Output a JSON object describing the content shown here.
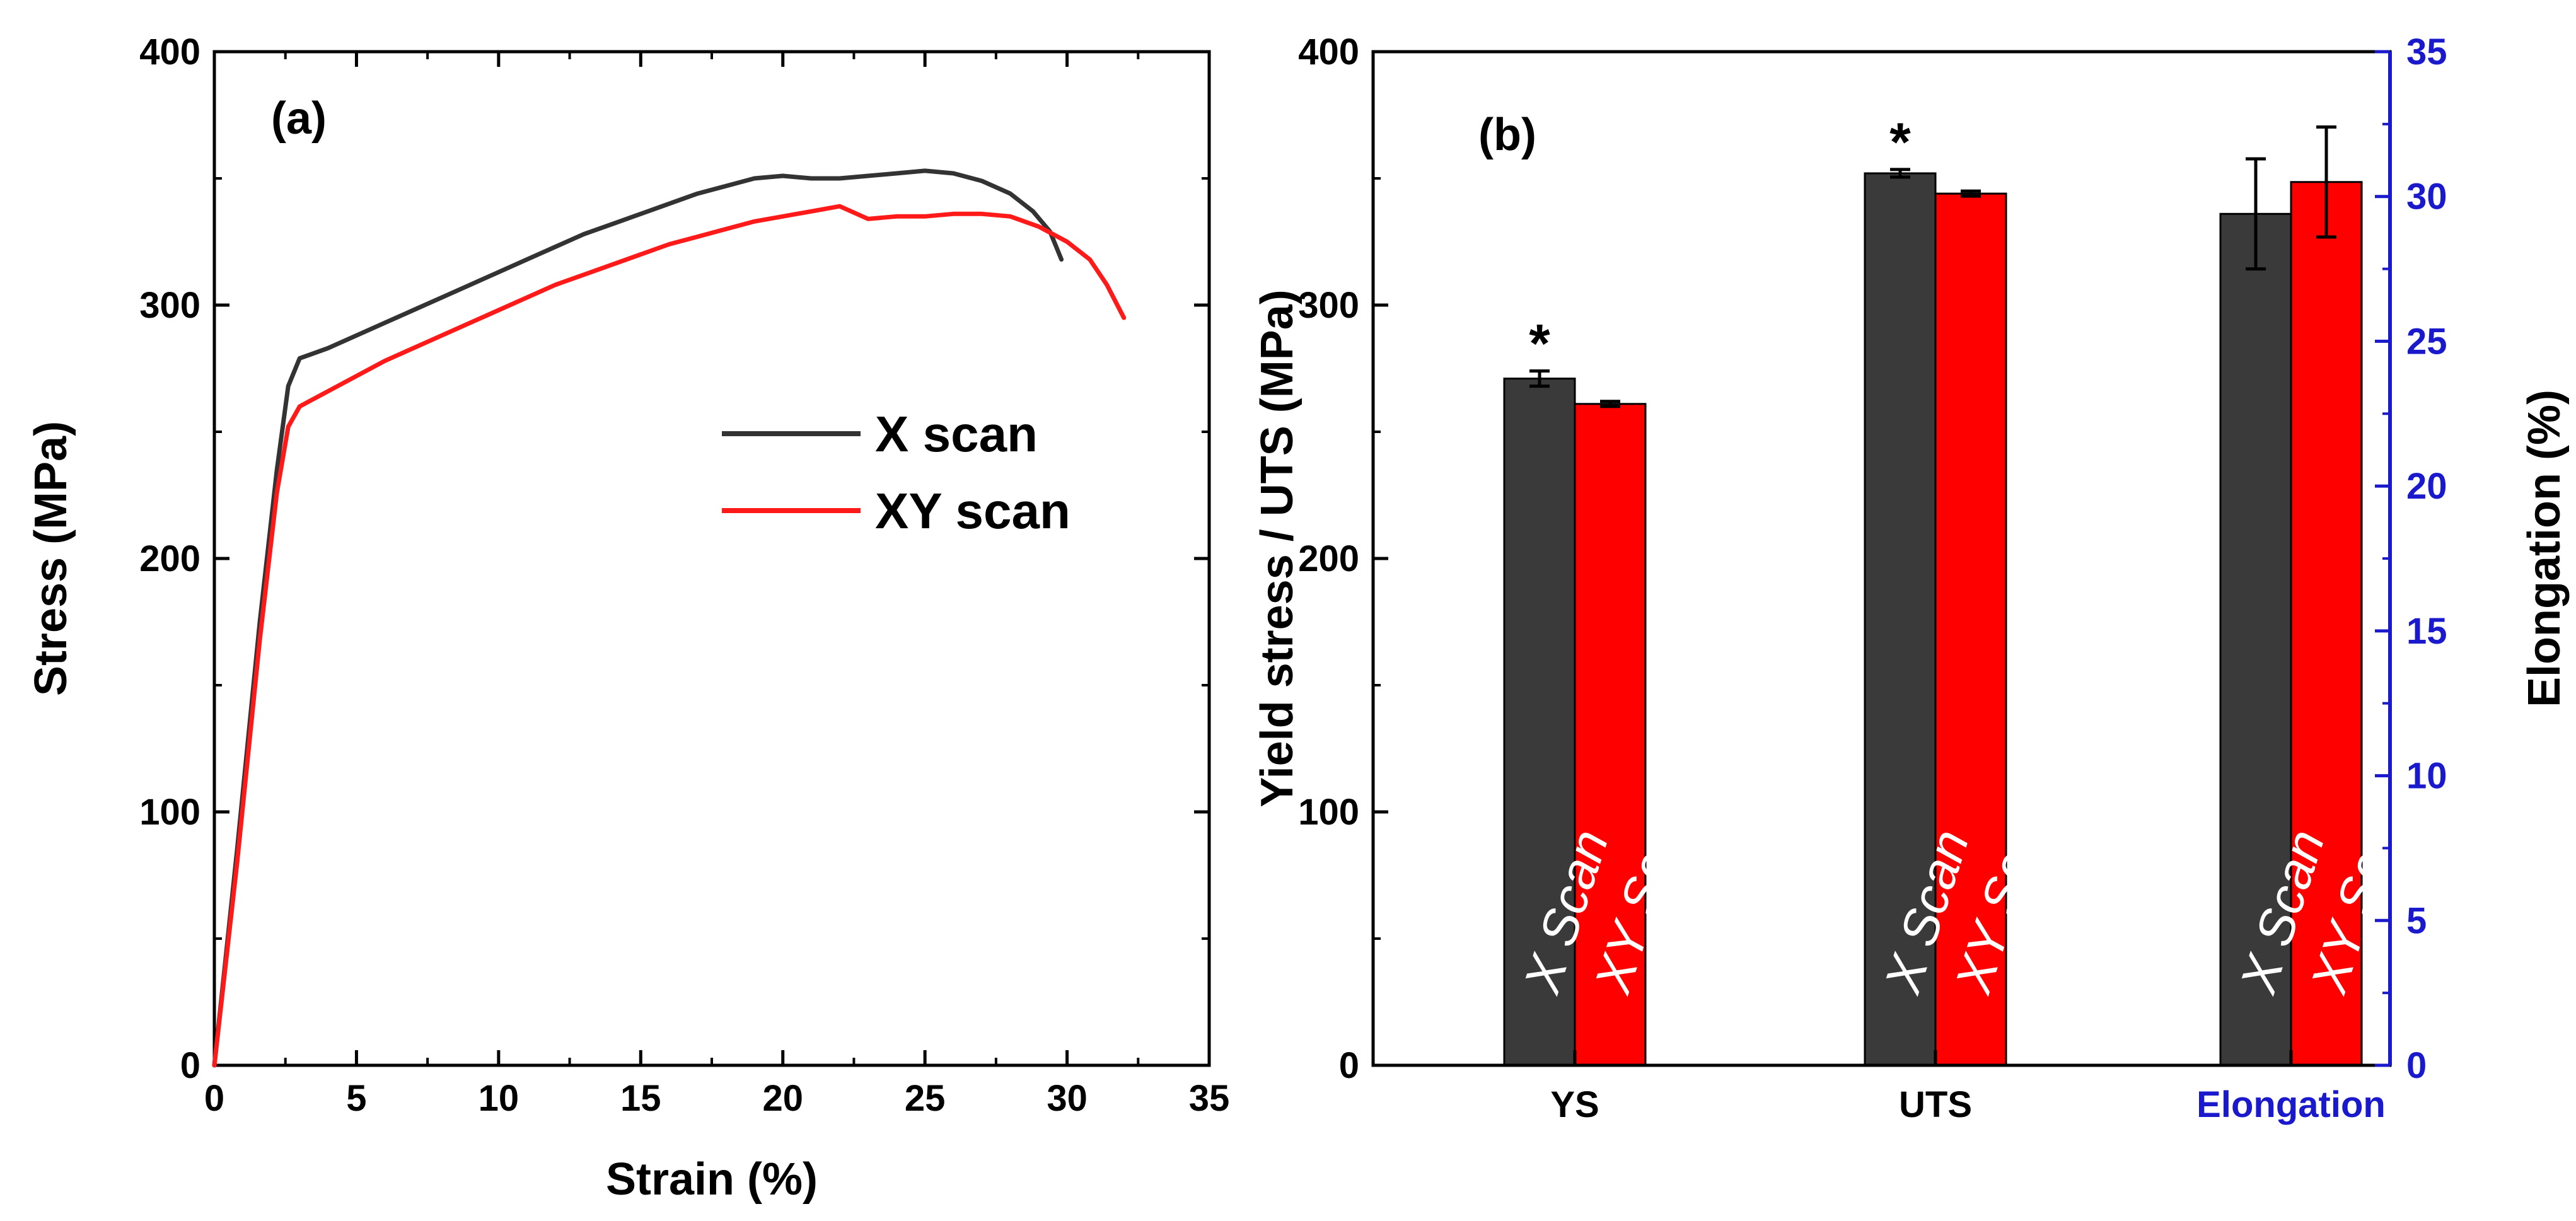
{
  "chart_data": [
    {
      "type": "line",
      "panel_label": "(a)",
      "xlabel": "Strain (%)",
      "ylabel": "Stress (MPa)",
      "xlim": [
        0,
        35
      ],
      "ylim": [
        0,
        400
      ],
      "xticks": [
        "0",
        "5",
        "10",
        "15",
        "20",
        "25",
        "30",
        "35"
      ],
      "yticks": [
        "0",
        "100",
        "200",
        "300",
        "400"
      ],
      "legend_position": "center-right",
      "series": [
        {
          "name": "X scan",
          "color": "#333333",
          "x": [
            0,
            0.8,
            1.6,
            2.2,
            2.6,
            3.0,
            3.5,
            4.0,
            5.0,
            6.0,
            7.0,
            8.0,
            9.0,
            10.0,
            11.0,
            12.0,
            13.0,
            14.0,
            15.0,
            16.0,
            17.0,
            18.0,
            19.0,
            20.0,
            21.0,
            22.0,
            23.0,
            24.0,
            25.0,
            26.0,
            27.0,
            28.0,
            28.8,
            29.4,
            29.8
          ],
          "y": [
            0,
            85,
            175,
            235,
            268,
            279,
            281,
            283,
            288,
            293,
            298,
            303,
            308,
            313,
            318,
            323,
            328,
            332,
            336,
            340,
            344,
            347,
            350,
            351,
            350,
            350,
            351,
            352,
            353,
            352,
            349,
            344,
            337,
            329,
            318
          ]
        },
        {
          "name": "XY scan",
          "color": "#ff1a1a",
          "x": [
            0,
            0.8,
            1.6,
            2.2,
            2.6,
            3.0,
            3.5,
            4.0,
            5.0,
            6.0,
            7.0,
            8.0,
            9.0,
            10.0,
            11.0,
            12.0,
            13.0,
            14.0,
            15.0,
            16.0,
            17.0,
            18.0,
            19.0,
            20.0,
            21.0,
            22.0,
            23.0,
            24.0,
            25.0,
            26.0,
            27.0,
            28.0,
            29.0,
            30.0,
            30.8,
            31.4,
            32.0
          ],
          "y": [
            0,
            80,
            168,
            226,
            252,
            260,
            263,
            266,
            272,
            278,
            283,
            288,
            293,
            298,
            303,
            308,
            312,
            316,
            320,
            324,
            327,
            330,
            333,
            335,
            337,
            339,
            334,
            335,
            335,
            336,
            336,
            335,
            331,
            325,
            318,
            308,
            295
          ]
        }
      ]
    },
    {
      "type": "bar",
      "panel_label": "(b)",
      "categories": [
        "YS",
        "UTS",
        "Elongation"
      ],
      "ylabel": "Yield stress / UTS (MPa)",
      "ylim": [
        0,
        400
      ],
      "yticks": [
        "0",
        "100",
        "200",
        "300",
        "400"
      ],
      "y2label": "Elongation (%)",
      "y2lim": [
        0,
        35
      ],
      "y2ticks": [
        "0",
        "5",
        "10",
        "15",
        "20",
        "25",
        "30",
        "35"
      ],
      "series": [
        {
          "name": "X Scan",
          "color": "#3a3a3a",
          "values": [
            271,
            352,
            29.4
          ],
          "errors": [
            3,
            1.5,
            1.9
          ],
          "significance": [
            "*",
            "*",
            ""
          ]
        },
        {
          "name": "XY Scan",
          "color": "#ff0000",
          "values": [
            261,
            344,
            30.5
          ],
          "errors": [
            1,
            1,
            1.9
          ],
          "significance": [
            "",
            "",
            ""
          ]
        }
      ],
      "colors": {
        "right_axis": "#1a1acc"
      }
    }
  ]
}
